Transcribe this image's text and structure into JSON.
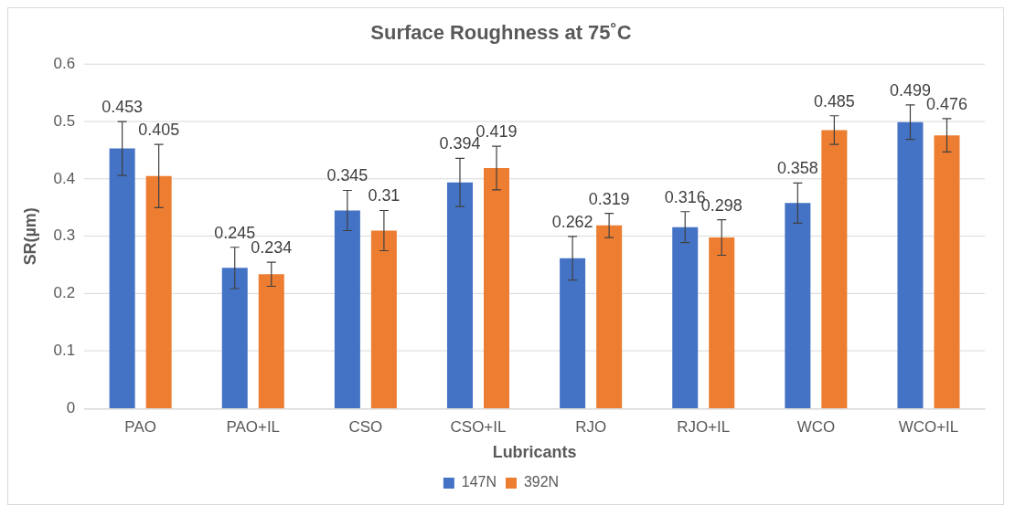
{
  "chart_data": {
    "type": "bar",
    "title": "Surface Roughness at 75˚C",
    "xlabel": "Lubricants",
    "ylabel": "SR(µm)",
    "categories": [
      "PAO",
      "PAO+IL",
      "CSO",
      "CSO+IL",
      "RJO",
      "RJO+IL",
      "WCO",
      "WCO+IL"
    ],
    "series": [
      {
        "name": "147N",
        "color": "#4472c4",
        "values": [
          0.453,
          0.245,
          0.345,
          0.394,
          0.262,
          0.316,
          0.358,
          0.499
        ],
        "errors": [
          0.047,
          0.036,
          0.035,
          0.042,
          0.038,
          0.027,
          0.035,
          0.03
        ]
      },
      {
        "name": "392N",
        "color": "#ed7d31",
        "values": [
          0.405,
          0.234,
          0.31,
          0.419,
          0.319,
          0.298,
          0.485,
          0.476
        ],
        "errors": [
          0.055,
          0.021,
          0.035,
          0.038,
          0.021,
          0.031,
          0.025,
          0.029
        ]
      }
    ],
    "ylim": [
      0,
      0.6
    ],
    "yticks": [
      0,
      0.1,
      0.2,
      0.3,
      0.4,
      0.5,
      0.6
    ],
    "grid": "y",
    "legend": "bottom",
    "data_labels": true
  }
}
